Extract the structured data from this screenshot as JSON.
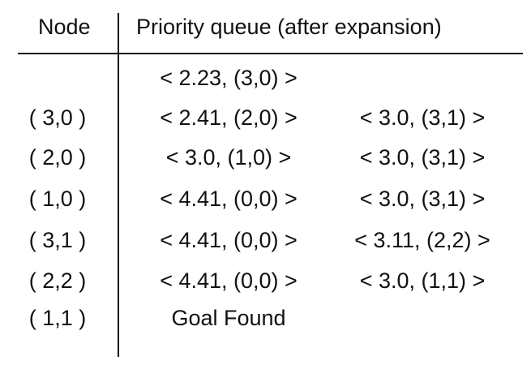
{
  "header": {
    "node": "Node",
    "queue": "Priority queue (after expansion)"
  },
  "rows": [
    {
      "node": "",
      "q1": "< 2.23, (3,0) >",
      "q2": ""
    },
    {
      "node": "( 3,0 )",
      "q1": "< 2.41, (2,0) >",
      "q2": "< 3.0, (3,1) >"
    },
    {
      "node": "( 2,0 )",
      "q1": "< 3.0, (1,0) >",
      "q2": "< 3.0, (3,1) >"
    },
    {
      "node": "( 1,0 )",
      "q1": "< 4.41, (0,0) >",
      "q2": "< 3.0, (3,1) >"
    },
    {
      "node": "( 3,1 )",
      "q1": "< 4.41, (0,0) >",
      "q2": "< 3.11, (2,2) >"
    },
    {
      "node": "( 2,2 )",
      "q1": "< 4.41, (0,0) >",
      "q2": "< 3.0, (1,1) >"
    },
    {
      "node": "( 1,1 )",
      "q1": "Goal Found",
      "q2": ""
    }
  ]
}
